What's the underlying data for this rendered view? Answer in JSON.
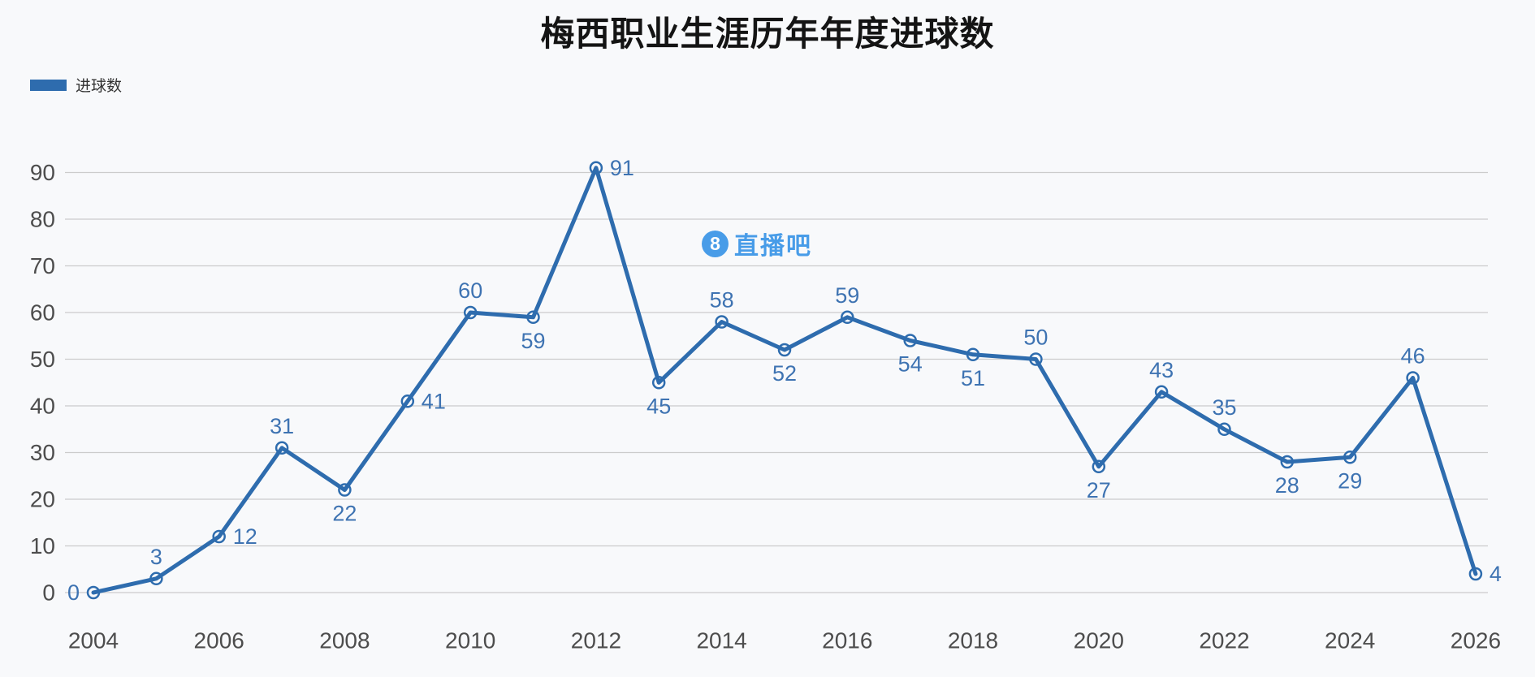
{
  "title": "梅西职业生涯历年年度进球数",
  "legend": {
    "label": "进球数",
    "swatch_color": "#2e6cae"
  },
  "watermark": {
    "logo_char": "8",
    "text": "直播吧",
    "color": "#3f98e8"
  },
  "colors": {
    "background": "#f8f9fb",
    "line": "#2e6cae",
    "data_label": "#3e73b2",
    "grid": "#cccccc",
    "axis_text": "#4d4d4d",
    "title_text": "#141414"
  },
  "chart_data": {
    "type": "line",
    "title": "梅西职业生涯历年年度进球数",
    "series_name": "进球数",
    "x": [
      2004,
      2005,
      2006,
      2007,
      2008,
      2009,
      2010,
      2011,
      2012,
      2013,
      2014,
      2015,
      2016,
      2017,
      2018,
      2019,
      2020,
      2021,
      2022,
      2023,
      2024,
      2025,
      2026
    ],
    "values": [
      0,
      3,
      12,
      31,
      22,
      41,
      60,
      59,
      91,
      45,
      58,
      52,
      59,
      54,
      51,
      50,
      27,
      43,
      35,
      28,
      29,
      46,
      4
    ],
    "label_positions": [
      "left",
      "above",
      "right",
      "above",
      "below",
      "right",
      "above",
      "below",
      "right",
      "below",
      "above",
      "below",
      "above",
      "below",
      "below",
      "above",
      "below",
      "above",
      "above",
      "below",
      "below",
      "above",
      "right"
    ],
    "x_ticks": [
      2004,
      2006,
      2008,
      2010,
      2012,
      2014,
      2016,
      2018,
      2020,
      2022,
      2024,
      2026
    ],
    "y_ticks": [
      0,
      10,
      20,
      30,
      40,
      50,
      60,
      70,
      80,
      90
    ],
    "ylim": [
      0,
      95
    ],
    "grid": true,
    "legend_position": "top-left",
    "xlabel": "",
    "ylabel": ""
  }
}
